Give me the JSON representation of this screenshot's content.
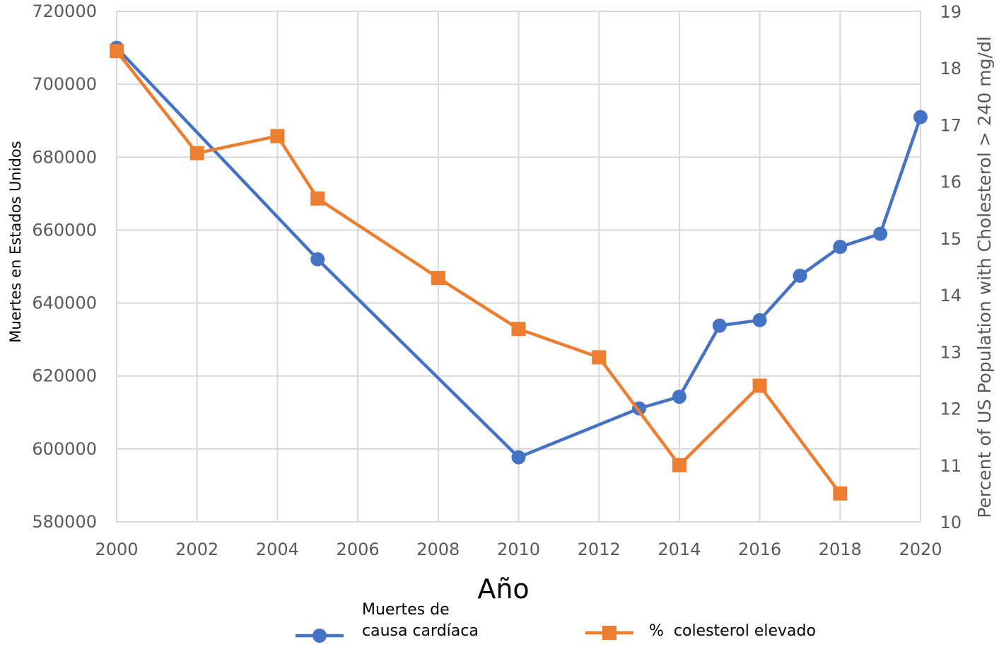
{
  "chart_data": {
    "type": "line",
    "xlabel": "Año",
    "ylabel": "Muertes en Estados Unidos",
    "y2label": "Percent of US Population with Cholesterol > 240 mg/dl",
    "xlim": [
      2000,
      2020
    ],
    "ylim": [
      580000,
      720000
    ],
    "y2lim": [
      10,
      19
    ],
    "x_ticks": [
      "2000",
      "2002",
      "2004",
      "2006",
      "2008",
      "2010",
      "2012",
      "2014",
      "2016",
      "2018",
      "2020"
    ],
    "y_ticks": [
      "580000",
      "600000",
      "620000",
      "640000",
      "660000",
      "680000",
      "700000",
      "720000"
    ],
    "y2_ticks": [
      "10",
      "11",
      "12",
      "13",
      "14",
      "15",
      "16",
      "17",
      "18",
      "19"
    ],
    "grid": true,
    "legend_position": "bottom",
    "series": [
      {
        "name_lines": [
          "Muertes de",
          "causa cardíaca"
        ],
        "axis": "left",
        "color": "#4472C4",
        "marker": "circle",
        "x": [
          2000,
          2005,
          2010,
          2013,
          2014,
          2015,
          2016,
          2017,
          2018,
          2019,
          2020
        ],
        "y": [
          710000,
          652000,
          597700,
          611100,
          614300,
          633800,
          635300,
          647500,
          655400,
          659000,
          691000
        ]
      },
      {
        "name": "%  colesterol elevado",
        "axis": "right",
        "color": "#ED7D31",
        "marker": "square",
        "x": [
          2000,
          2002,
          2004,
          2005,
          2008,
          2010,
          2012,
          2014,
          2016,
          2018
        ],
        "y": [
          18.3,
          16.5,
          16.8,
          15.7,
          14.3,
          13.4,
          12.9,
          11.0,
          12.4,
          10.5
        ]
      }
    ]
  }
}
